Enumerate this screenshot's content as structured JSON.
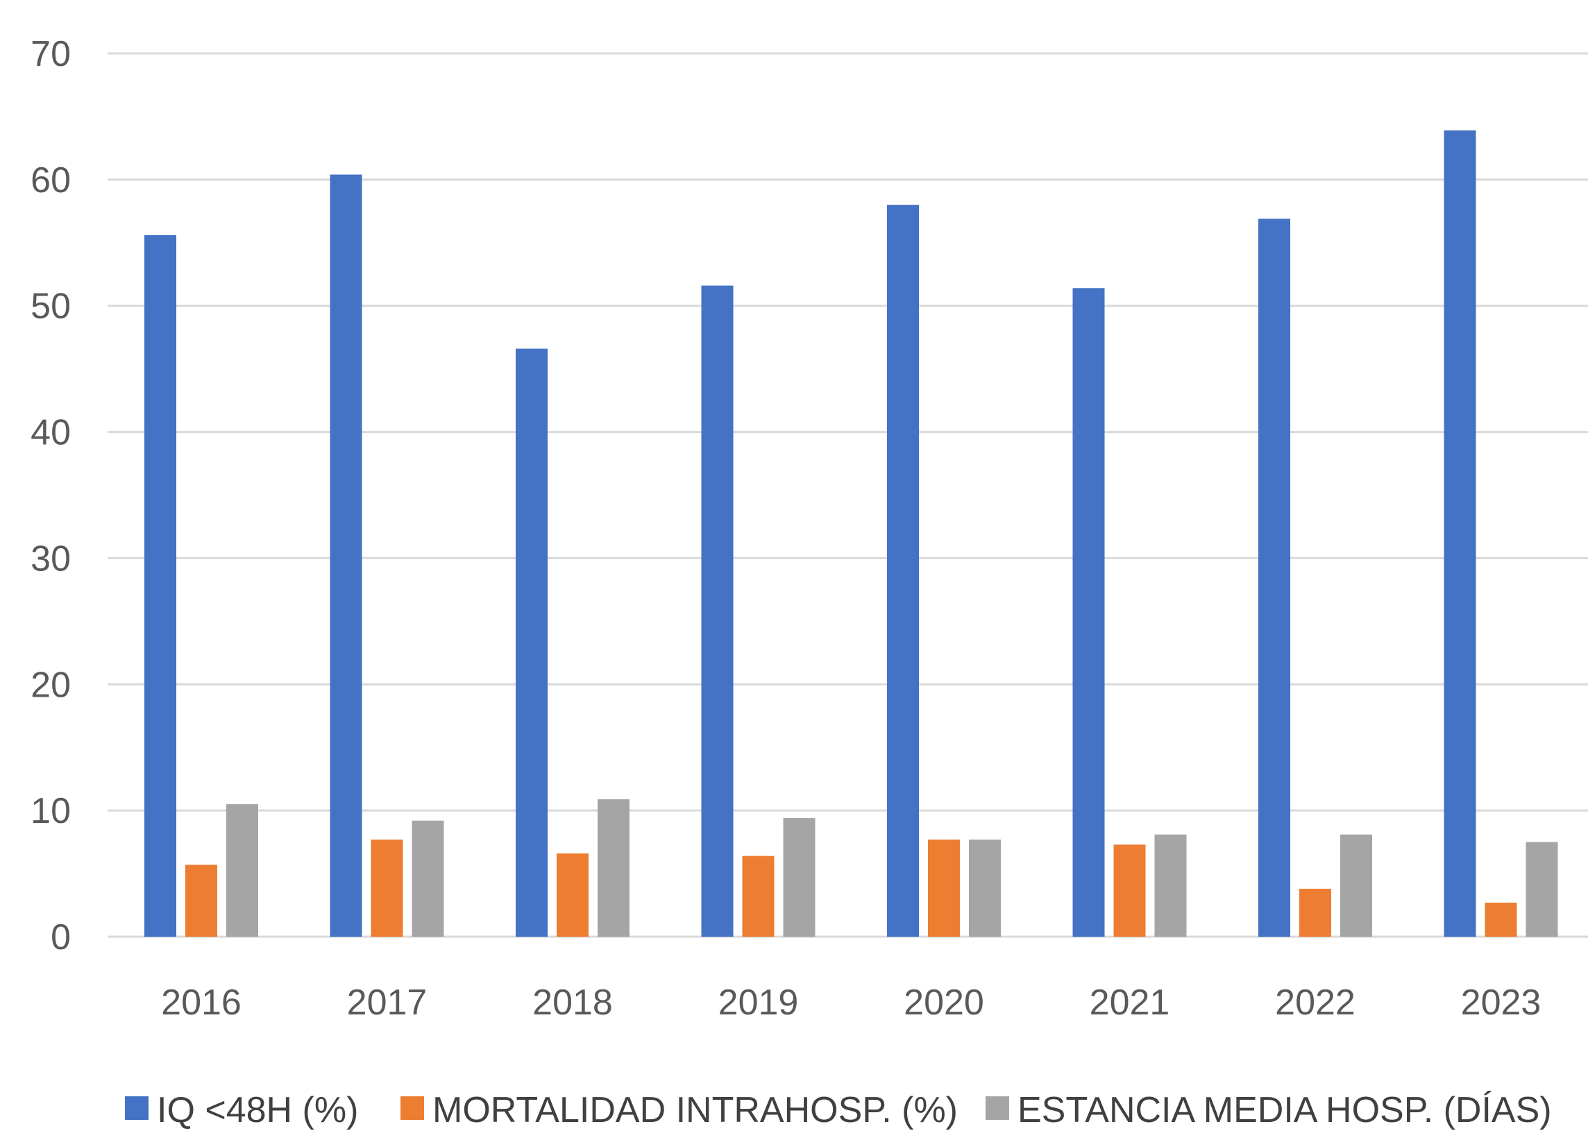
{
  "chart_data": {
    "type": "bar",
    "categories": [
      "2016",
      "2017",
      "2018",
      "2019",
      "2020",
      "2021",
      "2022",
      "2023"
    ],
    "series": [
      {
        "name": "IQ <48H (%)",
        "color": "#4472C4",
        "values": [
          55.6,
          60.4,
          46.6,
          51.6,
          58.0,
          51.4,
          56.9,
          63.9
        ]
      },
      {
        "name": "MORTALIDAD INTRAHOSP. (%)",
        "color": "#ED7D31",
        "values": [
          5.7,
          7.7,
          6.6,
          6.4,
          7.7,
          7.3,
          3.8,
          2.7
        ]
      },
      {
        "name": "ESTANCIA MEDIA HOSP. (DÍAS)",
        "color": "#A5A5A5",
        "values": [
          10.5,
          9.2,
          10.9,
          9.4,
          7.7,
          8.1,
          8.1,
          7.5
        ]
      }
    ],
    "ylim": [
      0,
      70
    ],
    "yticks": [
      "0",
      "10",
      "20",
      "30",
      "40",
      "50",
      "60",
      "70"
    ],
    "grid": true,
    "legend": "bottom",
    "title": "",
    "xlabel": "",
    "ylabel": ""
  }
}
